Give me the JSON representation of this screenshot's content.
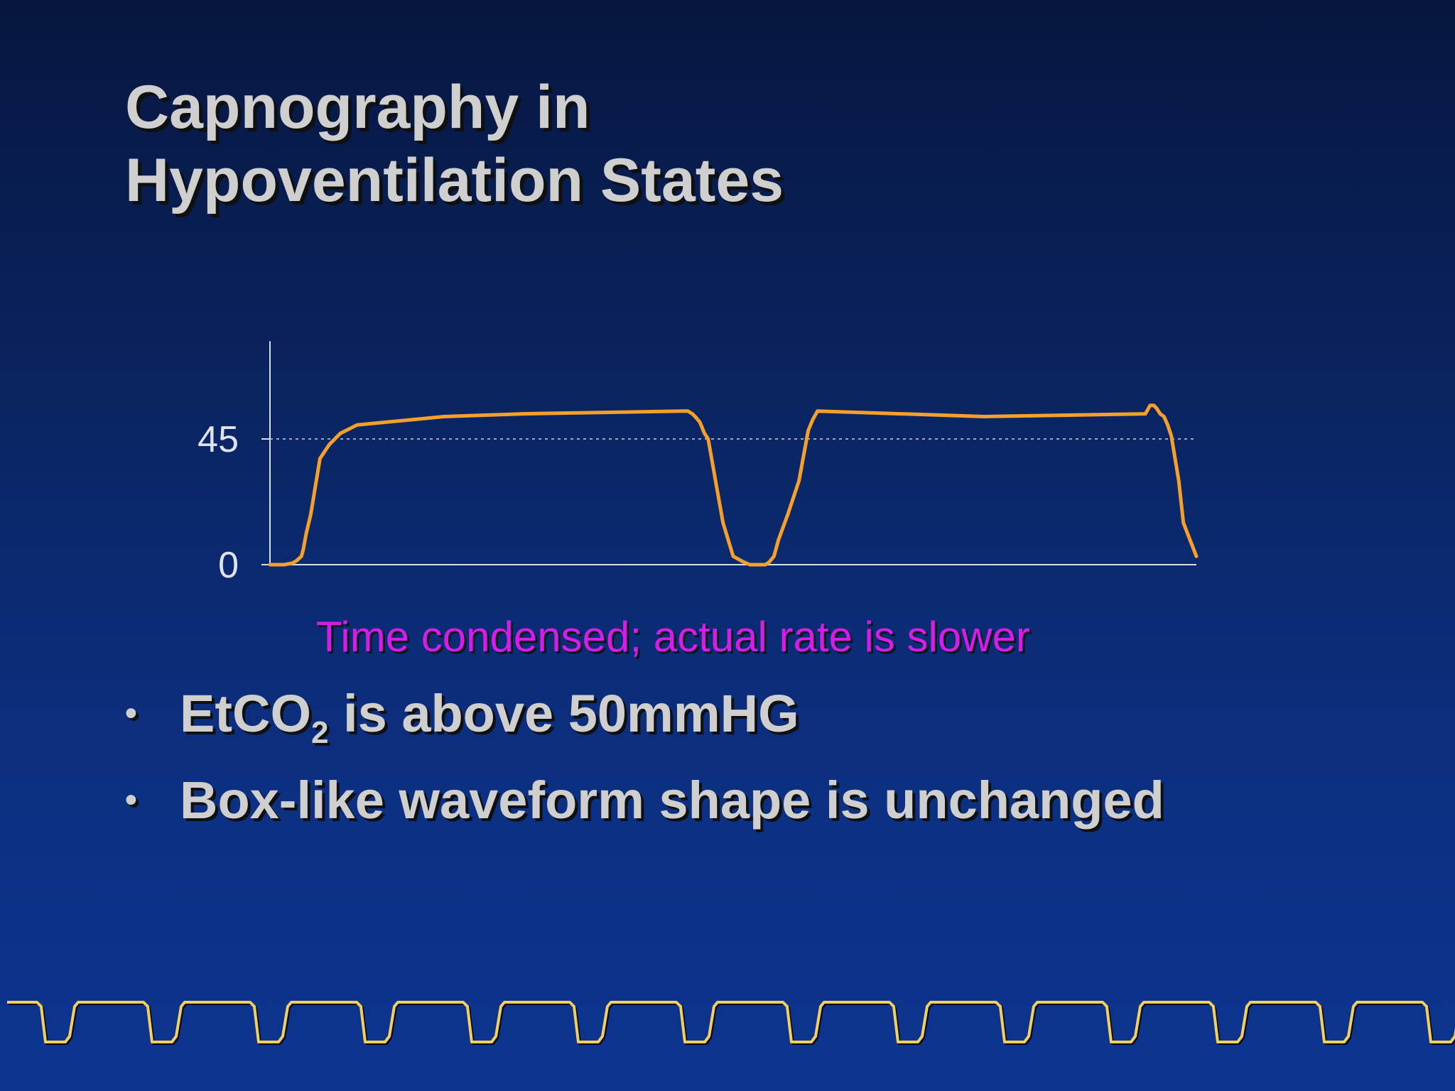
{
  "slide": {
    "title_line1": "Capnography in",
    "title_line2": "Hypoventilation States",
    "caption": "Time condensed; actual rate is slower",
    "bullets": [
      {
        "prefix": "EtCO",
        "sub": "2",
        "suffix": " is above 50mmHG"
      },
      {
        "prefix": "Box-like waveform shape is unchanged",
        "sub": "",
        "suffix": ""
      }
    ]
  },
  "chart_data": {
    "type": "line",
    "title": "",
    "xlabel": "",
    "ylabel": "",
    "ylim": [
      0,
      80
    ],
    "y_ticks": [
      {
        "value": 45,
        "label": "45"
      },
      {
        "value": 0,
        "label": "0"
      }
    ],
    "reference_line": {
      "value": 45,
      "style": "dotted"
    },
    "grid": false,
    "series": [
      {
        "color": "#f5a02a",
        "x": [
          0,
          1.1,
          1.5,
          2.4,
          2.9,
          3.4,
          3.6,
          3.9,
          4.4,
          5.4,
          6.4,
          7.6,
          9.4,
          18.8,
          27.4,
          44.6,
          45.1,
          45.6,
          45.9,
          46.4,
          46.9,
          47.3,
          48.1,
          48.9,
          50.0,
          51.1,
          51.8,
          52.4,
          52.8,
          53.1,
          53.5,
          53.9,
          54.4,
          54.9,
          55.9,
          57.1,
          58.1,
          58.6,
          59.1,
          77.1,
          94.5,
          95.0,
          95.4,
          95.7,
          96.1,
          96.5,
          96.9,
          97.3,
          98.1,
          98.6,
          100
        ],
        "values": [
          0,
          0,
          0,
          0.5,
          1.5,
          3,
          5.5,
          11,
          18,
          38,
          43,
          47,
          50,
          53,
          54,
          55,
          55,
          54,
          53,
          51,
          47,
          45,
          30,
          15,
          3,
          1,
          0,
          0,
          0,
          0,
          0,
          1,
          3,
          9,
          18,
          30,
          48,
          52,
          55,
          53,
          54,
          57,
          57,
          56,
          54,
          53,
          50,
          46,
          30,
          15,
          3
        ]
      }
    ]
  },
  "footer": {
    "wave_color": "#f0d060"
  }
}
